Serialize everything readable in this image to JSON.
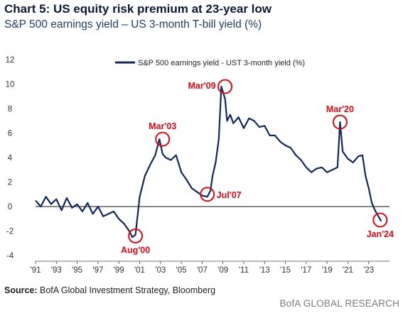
{
  "chart_data": {
    "type": "line",
    "title": "Chart 5: US equity risk premium at 23-year low",
    "subtitle": "S&P 500 earnings yield – US 3-month T-bill yield (%)",
    "xlabel": "",
    "ylabel": "",
    "ylim": [
      -4,
      12
    ],
    "xlim": [
      1991,
      2025
    ],
    "y_ticks": [
      "12",
      "10",
      "8",
      "6",
      "4",
      "2",
      "0",
      "-2",
      "-4"
    ],
    "x_ticks": [
      "'91",
      "'93",
      "'95",
      "'97",
      "'99",
      "'01",
      "'03",
      "'05",
      "'07",
      "'09",
      "'11",
      "'13",
      "'15",
      "'17",
      "'19",
      "'21",
      "'23"
    ],
    "grid": false,
    "legend_position": "top-right",
    "series": [
      {
        "name": "S&P 500 earnings yield - UST 3-month yield (%)",
        "color": "#12275e",
        "x": [
          1991.0,
          1991.5,
          1992.0,
          1992.5,
          1993.0,
          1993.5,
          1994.0,
          1994.5,
          1995.0,
          1995.5,
          1996.0,
          1996.5,
          1997.0,
          1997.5,
          1998.0,
          1998.5,
          1999.0,
          1999.5,
          2000.0,
          2000.3,
          2000.6,
          2001.0,
          2001.5,
          2002.0,
          2002.5,
          2002.9,
          2003.2,
          2003.5,
          2004.0,
          2004.5,
          2005.0,
          2005.5,
          2006.0,
          2006.5,
          2007.0,
          2007.5,
          2007.8,
          2008.0,
          2008.3,
          2008.6,
          2008.85,
          2009.2,
          2009.4,
          2009.7,
          2010.0,
          2010.5,
          2011.0,
          2011.5,
          2012.0,
          2012.5,
          2013.0,
          2013.5,
          2014.0,
          2014.5,
          2015.0,
          2015.5,
          2016.0,
          2016.5,
          2017.0,
          2017.5,
          2018.0,
          2018.5,
          2019.0,
          2019.5,
          2020.0,
          2020.25,
          2020.5,
          2021.0,
          2021.5,
          2022.0,
          2022.4,
          2022.7,
          2023.0,
          2023.3,
          2023.6,
          2024.0,
          2024.2
        ],
        "values": [
          0.5,
          0.0,
          0.8,
          0.2,
          0.6,
          -0.3,
          0.7,
          -0.1,
          0.2,
          -0.4,
          0.3,
          -0.6,
          0.0,
          -0.8,
          -0.6,
          -0.4,
          -1.0,
          -1.4,
          -2.0,
          -2.5,
          -2.3,
          0.8,
          2.5,
          3.4,
          4.2,
          5.5,
          4.3,
          4.0,
          3.8,
          4.2,
          2.8,
          2.2,
          1.5,
          1.2,
          0.9,
          0.8,
          1.3,
          2.5,
          3.6,
          5.5,
          9.8,
          8.8,
          7.0,
          7.5,
          6.8,
          7.3,
          6.4,
          7.2,
          7.0,
          6.5,
          6.6,
          5.8,
          5.8,
          5.3,
          5.0,
          4.8,
          4.2,
          3.8,
          3.2,
          2.8,
          3.1,
          3.2,
          2.8,
          3.0,
          3.2,
          6.9,
          4.5,
          3.9,
          3.6,
          4.1,
          4.2,
          2.5,
          1.5,
          0.3,
          -0.3,
          -0.9,
          -1.2
        ]
      }
    ],
    "annotations": [
      {
        "label": "Mar'03",
        "x": 2003.2,
        "y": 5.5,
        "label_pos": "above"
      },
      {
        "label": "Mar'09",
        "x": 2009.2,
        "y": 9.8,
        "label_pos": "left"
      },
      {
        "label": "Mar'20",
        "x": 2020.25,
        "y": 6.9,
        "label_pos": "above"
      },
      {
        "label": "Aug'00",
        "x": 2000.6,
        "y": -2.4,
        "label_pos": "below"
      },
      {
        "label": "Jul'07",
        "x": 2007.5,
        "y": 1.0,
        "label_pos": "right"
      },
      {
        "label": "Jan'24",
        "x": 2024.1,
        "y": -1.1,
        "label_pos": "below"
      }
    ]
  },
  "footer": {
    "source_label": "Source:",
    "source_text": " BofA Global Investment Strategy, Bloomberg",
    "brand": "BofA GLOBAL RESEARCH"
  }
}
